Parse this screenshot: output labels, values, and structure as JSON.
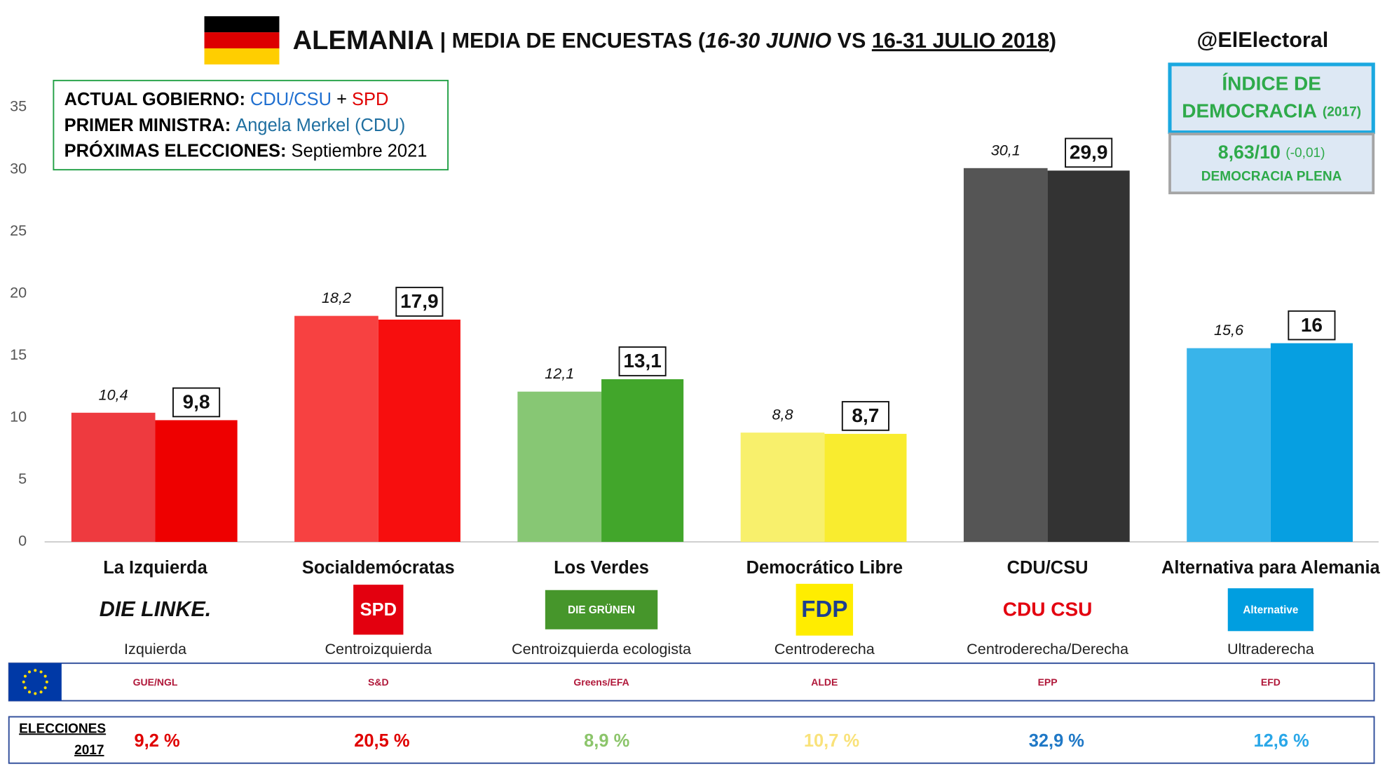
{
  "chart_data": {
    "type": "bar",
    "handle": "@ElElectoral",
    "title_parts": [
      "ALEMANIA",
      " | MEDIA DE ENCUESTAS (",
      "16-30 JUNIO",
      " VS ",
      "16-31 JULIO 2018",
      ")"
    ],
    "info": {
      "gobierno_label": "ACTUAL GOBIERNO:",
      "gobierno_a": "CDU/CSU",
      "gobierno_plus": "+",
      "gobierno_b": "SPD",
      "ministra_label": "PRIMER MINISTRA:",
      "ministra": "Angela Merkel (CDU)",
      "elecciones_label": "PRÓXIMAS ELECCIONES:",
      "elecciones": "Septiembre 2021"
    },
    "democracy": {
      "line1": "ÍNDICE DE",
      "line2": "DEMOCRACIA",
      "year": "(2017)",
      "score": "8,63/10",
      "change": "(-0,01)",
      "status": "DEMOCRACIA PLENA"
    },
    "categories": [
      "La Izquierda",
      "Socialdemócratas",
      "Los Verdes",
      "Democrático Libre",
      "CDU/CSU",
      "Alternativa para Alemania"
    ],
    "logos": [
      "DIE LINKE.",
      "SPD",
      "DIE GRÜNEN",
      "FDP",
      "CDU CSU",
      "Alternative"
    ],
    "ideologies": [
      "Izquierda",
      "Centroizquierda",
      "Centroizquierda ecologista",
      "Centroderecha",
      "Centroderecha/Derecha",
      "Ultraderecha"
    ],
    "eu_groups": [
      "GUE/NGL",
      "S&D",
      "Greens/EFA",
      "ALDE",
      "EPP",
      "EFD"
    ],
    "series": [
      {
        "colors": [
          "#ee3a3f",
          "#f74141",
          "#87c774",
          "#f8f06c",
          "#555555",
          "#39b4ea"
        ],
        "values": [
          10.4,
          18.2,
          12.1,
          8.8,
          30.1,
          15.6
        ],
        "value_labels": [
          "10,4",
          "18,2",
          "12,1",
          "8,8",
          "30,1",
          "15,6"
        ]
      },
      {
        "colors": [
          "#ee0000",
          "#f70e0e",
          "#42a62b",
          "#f9ec2f",
          "#333333",
          "#069fe1"
        ],
        "values": [
          9.8,
          17.9,
          13.1,
          8.7,
          29.9,
          16
        ],
        "value_labels": [
          "9,8",
          "17,9",
          "13,1",
          "8,7",
          "29,9",
          "16"
        ]
      }
    ],
    "ylim": [
      0,
      35
    ],
    "yticks": [
      0,
      5,
      10,
      15,
      20,
      25,
      30,
      35
    ],
    "elections_label": [
      "ELECCIONES",
      "2017"
    ],
    "elections_2017": {
      "values": [
        9.2,
        20.5,
        8.9,
        10.7,
        32.9,
        12.6
      ],
      "value_labels": [
        "9,2 %",
        "20,5 %",
        "8,9 %",
        "10,7 %",
        "32,9 %",
        "12,6 %"
      ],
      "colors": [
        "#e00000",
        "#e00000",
        "#8cc56b",
        "#f9e27a",
        "#1f78c6",
        "#2aa7e8"
      ]
    }
  }
}
